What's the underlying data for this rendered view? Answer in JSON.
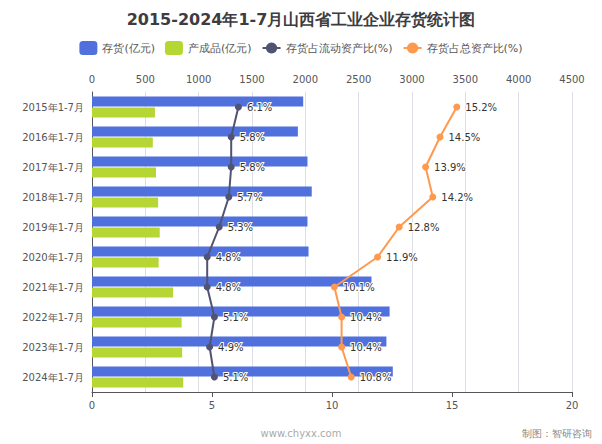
{
  "chart_data": {
    "type": "bar",
    "orientation": "horizontal",
    "title": "2015-2024年1-7月山西省工业企业存货统计图",
    "categories": [
      "2015年1-7月",
      "2016年1-7月",
      "2017年1-7月",
      "2018年1-7月",
      "2019年1-7月",
      "2020年1-7月",
      "2021年1-7月",
      "2022年1-7月",
      "2023年1-7月",
      "2024年1-7月"
    ],
    "series": [
      {
        "name": "存货(亿元)",
        "values": [
          1980,
          1930,
          2020,
          2060,
          2020,
          2030,
          2620,
          2790,
          2760,
          2820
        ]
      },
      {
        "name": "产成品(亿元)",
        "values": [
          590,
          570,
          600,
          620,
          635,
          625,
          760,
          840,
          845,
          855
        ]
      },
      {
        "name": "存货占流动资产比(%)",
        "type": "line",
        "axis": "x2",
        "data_labels": true,
        "values": [
          6.1,
          5.8,
          5.8,
          5.7,
          5.3,
          4.8,
          4.8,
          5.1,
          4.9,
          5.1
        ],
        "value_labels": [
          "6.1%",
          "5.8%",
          "5.8%",
          "5.7%",
          "5.3%",
          "4.8%",
          "4.8%",
          "5.1%",
          "4.9%",
          "5.1%"
        ]
      },
      {
        "name": "存货占总资产比(%)",
        "type": "line",
        "axis": "x2",
        "data_labels": true,
        "values": [
          15.2,
          14.5,
          13.9,
          14.2,
          12.8,
          11.9,
          10.1,
          10.4,
          10.4,
          10.8
        ],
        "value_labels": [
          "15.2%",
          "14.5%",
          "13.9%",
          "14.2%",
          "12.8%",
          "11.9%",
          "10.1%",
          "10.4%",
          "10.4%",
          "10.8%"
        ]
      }
    ],
    "xlim": [
      0,
      4500
    ],
    "xticks": [
      0,
      500,
      1000,
      1500,
      2000,
      2500,
      3000,
      3500,
      4000,
      4500
    ],
    "x2lim": [
      0,
      20
    ],
    "x2ticks": [
      0,
      5,
      10,
      15,
      20
    ],
    "grid": true,
    "legend": "top",
    "annotations": [
      "制图：智研咨询",
      "www.chyxx.com"
    ]
  }
}
